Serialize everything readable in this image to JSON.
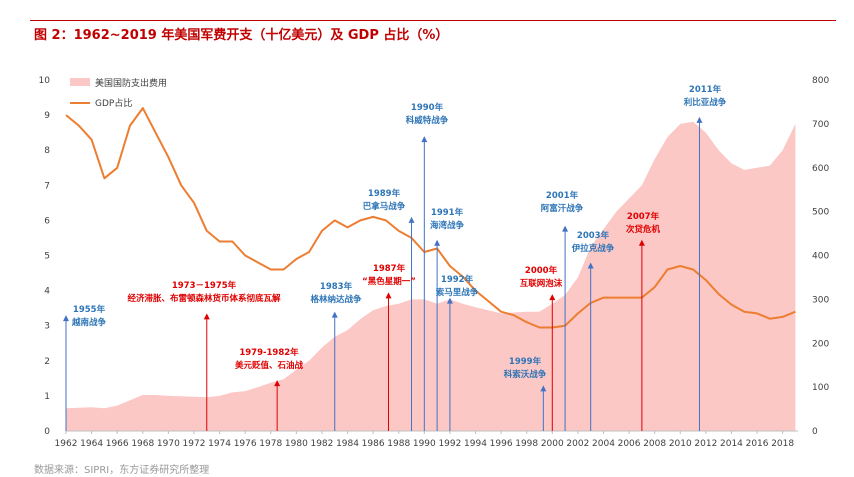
{
  "figure": {
    "title": "图 2：1962~2019 年美国军费开支（十亿美元）及 GDP 占比（%）",
    "source": "数据来源：SIPRI，东方证券研究所整理",
    "colors": {
      "area": "#fcc8c6",
      "line": "#ed7d31",
      "title": "#c00000",
      "arrow_red": "#e00000",
      "arrow_blue": "#4472c4",
      "label_blue": "#2e75b6"
    }
  },
  "chart_data": {
    "type": "area",
    "x": [
      1962,
      1963,
      1964,
      1965,
      1966,
      1967,
      1968,
      1969,
      1970,
      1971,
      1972,
      1973,
      1974,
      1975,
      1976,
      1977,
      1978,
      1979,
      1980,
      1981,
      1982,
      1983,
      1984,
      1985,
      1986,
      1987,
      1988,
      1989,
      1990,
      1991,
      1992,
      1993,
      1994,
      1995,
      1996,
      1997,
      1998,
      1999,
      2000,
      2001,
      2002,
      2003,
      2004,
      2005,
      2006,
      2007,
      2008,
      2009,
      2010,
      2011,
      2012,
      2013,
      2014,
      2015,
      2016,
      2017,
      2018,
      2019
    ],
    "x_ticks": [
      "1962",
      "1964",
      "1966",
      "1968",
      "1970",
      "1972",
      "1974",
      "1976",
      "1978",
      "1980",
      "1982",
      "1984",
      "1986",
      "1988",
      "1990",
      "1992",
      "1994",
      "1996",
      "1998",
      "2000",
      "2002",
      "2004",
      "2006",
      "2008",
      "2010",
      "2012",
      "2014",
      "2016",
      "2018"
    ],
    "series": [
      {
        "name": "美国国防支出费用",
        "axis": "right",
        "kind": "area",
        "values": [
          52,
          53,
          54,
          52,
          58,
          70,
          82,
          82,
          80,
          79,
          78,
          77,
          80,
          88,
          91,
          100,
          110,
          118,
          140,
          160,
          190,
          215,
          230,
          255,
          275,
          285,
          290,
          300,
          300,
          290,
          300,
          290,
          282,
          275,
          268,
          270,
          272,
          272,
          290,
          310,
          350,
          420,
          460,
          500,
          530,
          560,
          620,
          670,
          700,
          705,
          680,
          640,
          610,
          595,
          600,
          605,
          640,
          700
        ],
        "ylim": [
          0,
          800
        ],
        "yticks": [
          0,
          100,
          200,
          300,
          400,
          500,
          600,
          700,
          800
        ]
      },
      {
        "name": "GDP占比",
        "axis": "left",
        "kind": "line",
        "values": [
          9.0,
          8.7,
          8.3,
          7.2,
          7.5,
          8.7,
          9.2,
          8.5,
          7.8,
          7.0,
          6.5,
          5.7,
          5.4,
          5.4,
          5.0,
          4.8,
          4.6,
          4.6,
          4.9,
          5.1,
          5.7,
          6.0,
          5.8,
          6.0,
          6.1,
          6.0,
          5.7,
          5.5,
          5.1,
          5.2,
          4.7,
          4.4,
          4.0,
          3.7,
          3.4,
          3.3,
          3.1,
          2.95,
          2.95,
          3.0,
          3.35,
          3.65,
          3.8,
          3.8,
          3.8,
          3.8,
          4.1,
          4.6,
          4.7,
          4.6,
          4.3,
          3.9,
          3.6,
          3.4,
          3.35,
          3.2,
          3.25,
          3.4
        ],
        "ylim": [
          0,
          10
        ],
        "yticks": [
          0,
          1,
          2,
          3,
          4,
          5,
          6,
          7,
          8,
          9,
          10
        ]
      }
    ],
    "legend": {
      "placement": "top-left",
      "entries": [
        "美国国防支出费用",
        "GDP占比"
      ]
    },
    "grid": false,
    "annotations": [
      {
        "year": 1962,
        "top": 3.3,
        "color": "blue",
        "lines": [
          "1955年",
          "越南战争"
        ]
      },
      {
        "year": 1973,
        "top": 3.35,
        "color": "red",
        "lines": [
          "1973－1975年",
          "经济滞胀、布雷顿森林货币体系彻底瓦解"
        ]
      },
      {
        "year": 1978.5,
        "top": 1.45,
        "color": "red",
        "lines": [
          "1979-1982年",
          "美元贬值、石油战"
        ]
      },
      {
        "year": 1983,
        "top": 3.4,
        "color": "blue",
        "lines": [
          "1983年",
          "格林纳达战争"
        ]
      },
      {
        "year": 1987.2,
        "top": 3.95,
        "color": "red",
        "lines": [
          "1987年",
          "“黑色星期一”"
        ]
      },
      {
        "year": 1989,
        "top": 6.1,
        "color": "blue",
        "lines": [
          "1989年",
          "巴拿马战争"
        ]
      },
      {
        "year": 1990,
        "top": 8.4,
        "color": "blue",
        "lines": [
          "1990年",
          "科威特战争"
        ]
      },
      {
        "year": 1991,
        "top": 5.45,
        "color": "blue",
        "lines": [
          "1991年",
          "海湾战争"
        ]
      },
      {
        "year": 1992,
        "top": 3.8,
        "color": "blue",
        "lines": [
          "1992年",
          "索马里战争"
        ]
      },
      {
        "year": 1999.3,
        "top": 1.3,
        "color": "blue",
        "lines": [
          "1999年",
          "科索沃战争"
        ]
      },
      {
        "year": 2000,
        "top": 3.9,
        "color": "red",
        "lines": [
          "2000年",
          "互联网泡沫"
        ]
      },
      {
        "year": 2001,
        "top": 5.85,
        "color": "blue",
        "lines": [
          "2001年",
          "阿富汗战争"
        ]
      },
      {
        "year": 2003,
        "top": 4.8,
        "color": "blue",
        "lines": [
          "2003年",
          "伊拉克战争"
        ]
      },
      {
        "year": 2007,
        "top": 5.45,
        "color": "red",
        "lines": [
          "2007年",
          "次贷危机"
        ]
      },
      {
        "year": 2011.5,
        "top": 8.95,
        "color": "blue",
        "lines": [
          "2011年",
          "利比亚战争"
        ]
      }
    ]
  }
}
